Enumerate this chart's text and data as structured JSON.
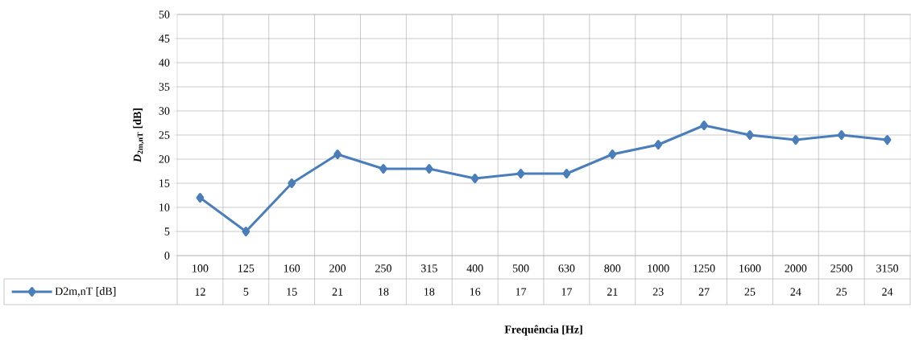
{
  "chart_data": {
    "type": "line",
    "xlabel": "Frequência [Hz]",
    "ylabel": "*D*$_{2m,nT}$ [dB]",
    "categories": [
      "100",
      "125",
      "160",
      "200",
      "250",
      "315",
      "400",
      "500",
      "630",
      "800",
      "1000",
      "1250",
      "1600",
      "2000",
      "2500",
      "3150"
    ],
    "series": [
      {
        "name": "D2m,nT [dB]",
        "color": "#4a7ebb",
        "values": [
          12,
          5,
          15,
          21,
          18,
          18,
          16,
          17,
          17,
          21,
          23,
          27,
          25,
          24,
          25,
          24
        ]
      }
    ],
    "ylim": [
      0,
      50
    ],
    "yticks": [
      0,
      5,
      10,
      15,
      20,
      25,
      30,
      35,
      40,
      45,
      50
    ],
    "grid": true,
    "legend": "bottom",
    "marker": "diamond",
    "line_style": "solid",
    "data_labels": true
  }
}
